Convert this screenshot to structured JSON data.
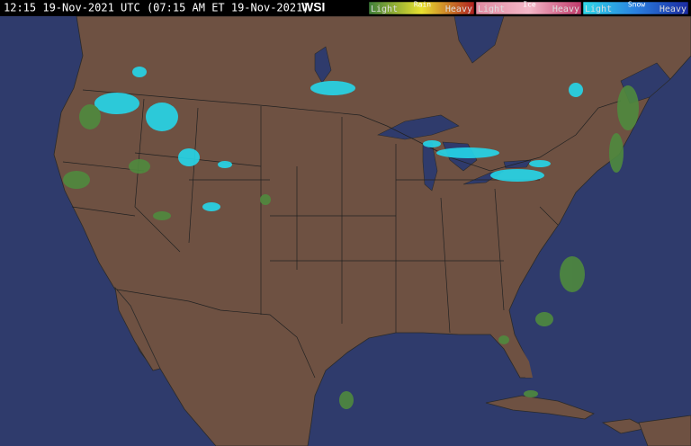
{
  "header": {
    "timestamp": "12:15 19-Nov-2021 UTC (07:15 AM ET 19-Nov-2021)",
    "logo": "WSI"
  },
  "legend": [
    {
      "name": "Rain",
      "low": "Light",
      "high": "Heavy"
    },
    {
      "name": "Ice",
      "low": "Light",
      "high": "Heavy"
    },
    {
      "name": "Snow",
      "low": "Light",
      "high": "Heavy"
    }
  ]
}
